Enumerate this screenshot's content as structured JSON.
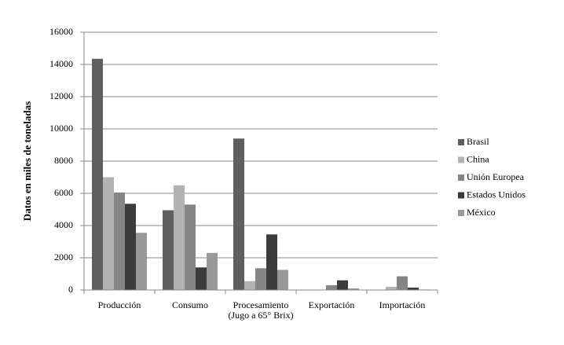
{
  "chart_data": {
    "type": "bar",
    "y_label": "Datos en miles de toneladas",
    "categories": [
      "Producción",
      "Consumo",
      "Procesamiento\n(Jugo a 65° Brix)",
      "Exportación",
      "Importación"
    ],
    "series": [
      {
        "name": "Brasil",
        "color": "#5f5f5f",
        "values": [
          14350,
          4950,
          9400,
          20,
          10
        ]
      },
      {
        "name": "China",
        "color": "#b3b3b3",
        "values": [
          7000,
          6500,
          550,
          10,
          200
        ]
      },
      {
        "name": "Unión Europea",
        "color": "#858585",
        "values": [
          6050,
          5300,
          1350,
          300,
          850
        ]
      },
      {
        "name": "Estados Unidos",
        "color": "#3c3c3c",
        "values": [
          5350,
          1400,
          3450,
          600,
          150
        ]
      },
      {
        "name": "México",
        "color": "#999999",
        "values": [
          3550,
          2300,
          1250,
          100,
          30
        ]
      }
    ],
    "ylim": [
      0,
      16000
    ],
    "yticks": [
      0,
      2000,
      4000,
      6000,
      8000,
      10000,
      12000,
      14000,
      16000
    ],
    "grid": true,
    "legend": "right"
  }
}
